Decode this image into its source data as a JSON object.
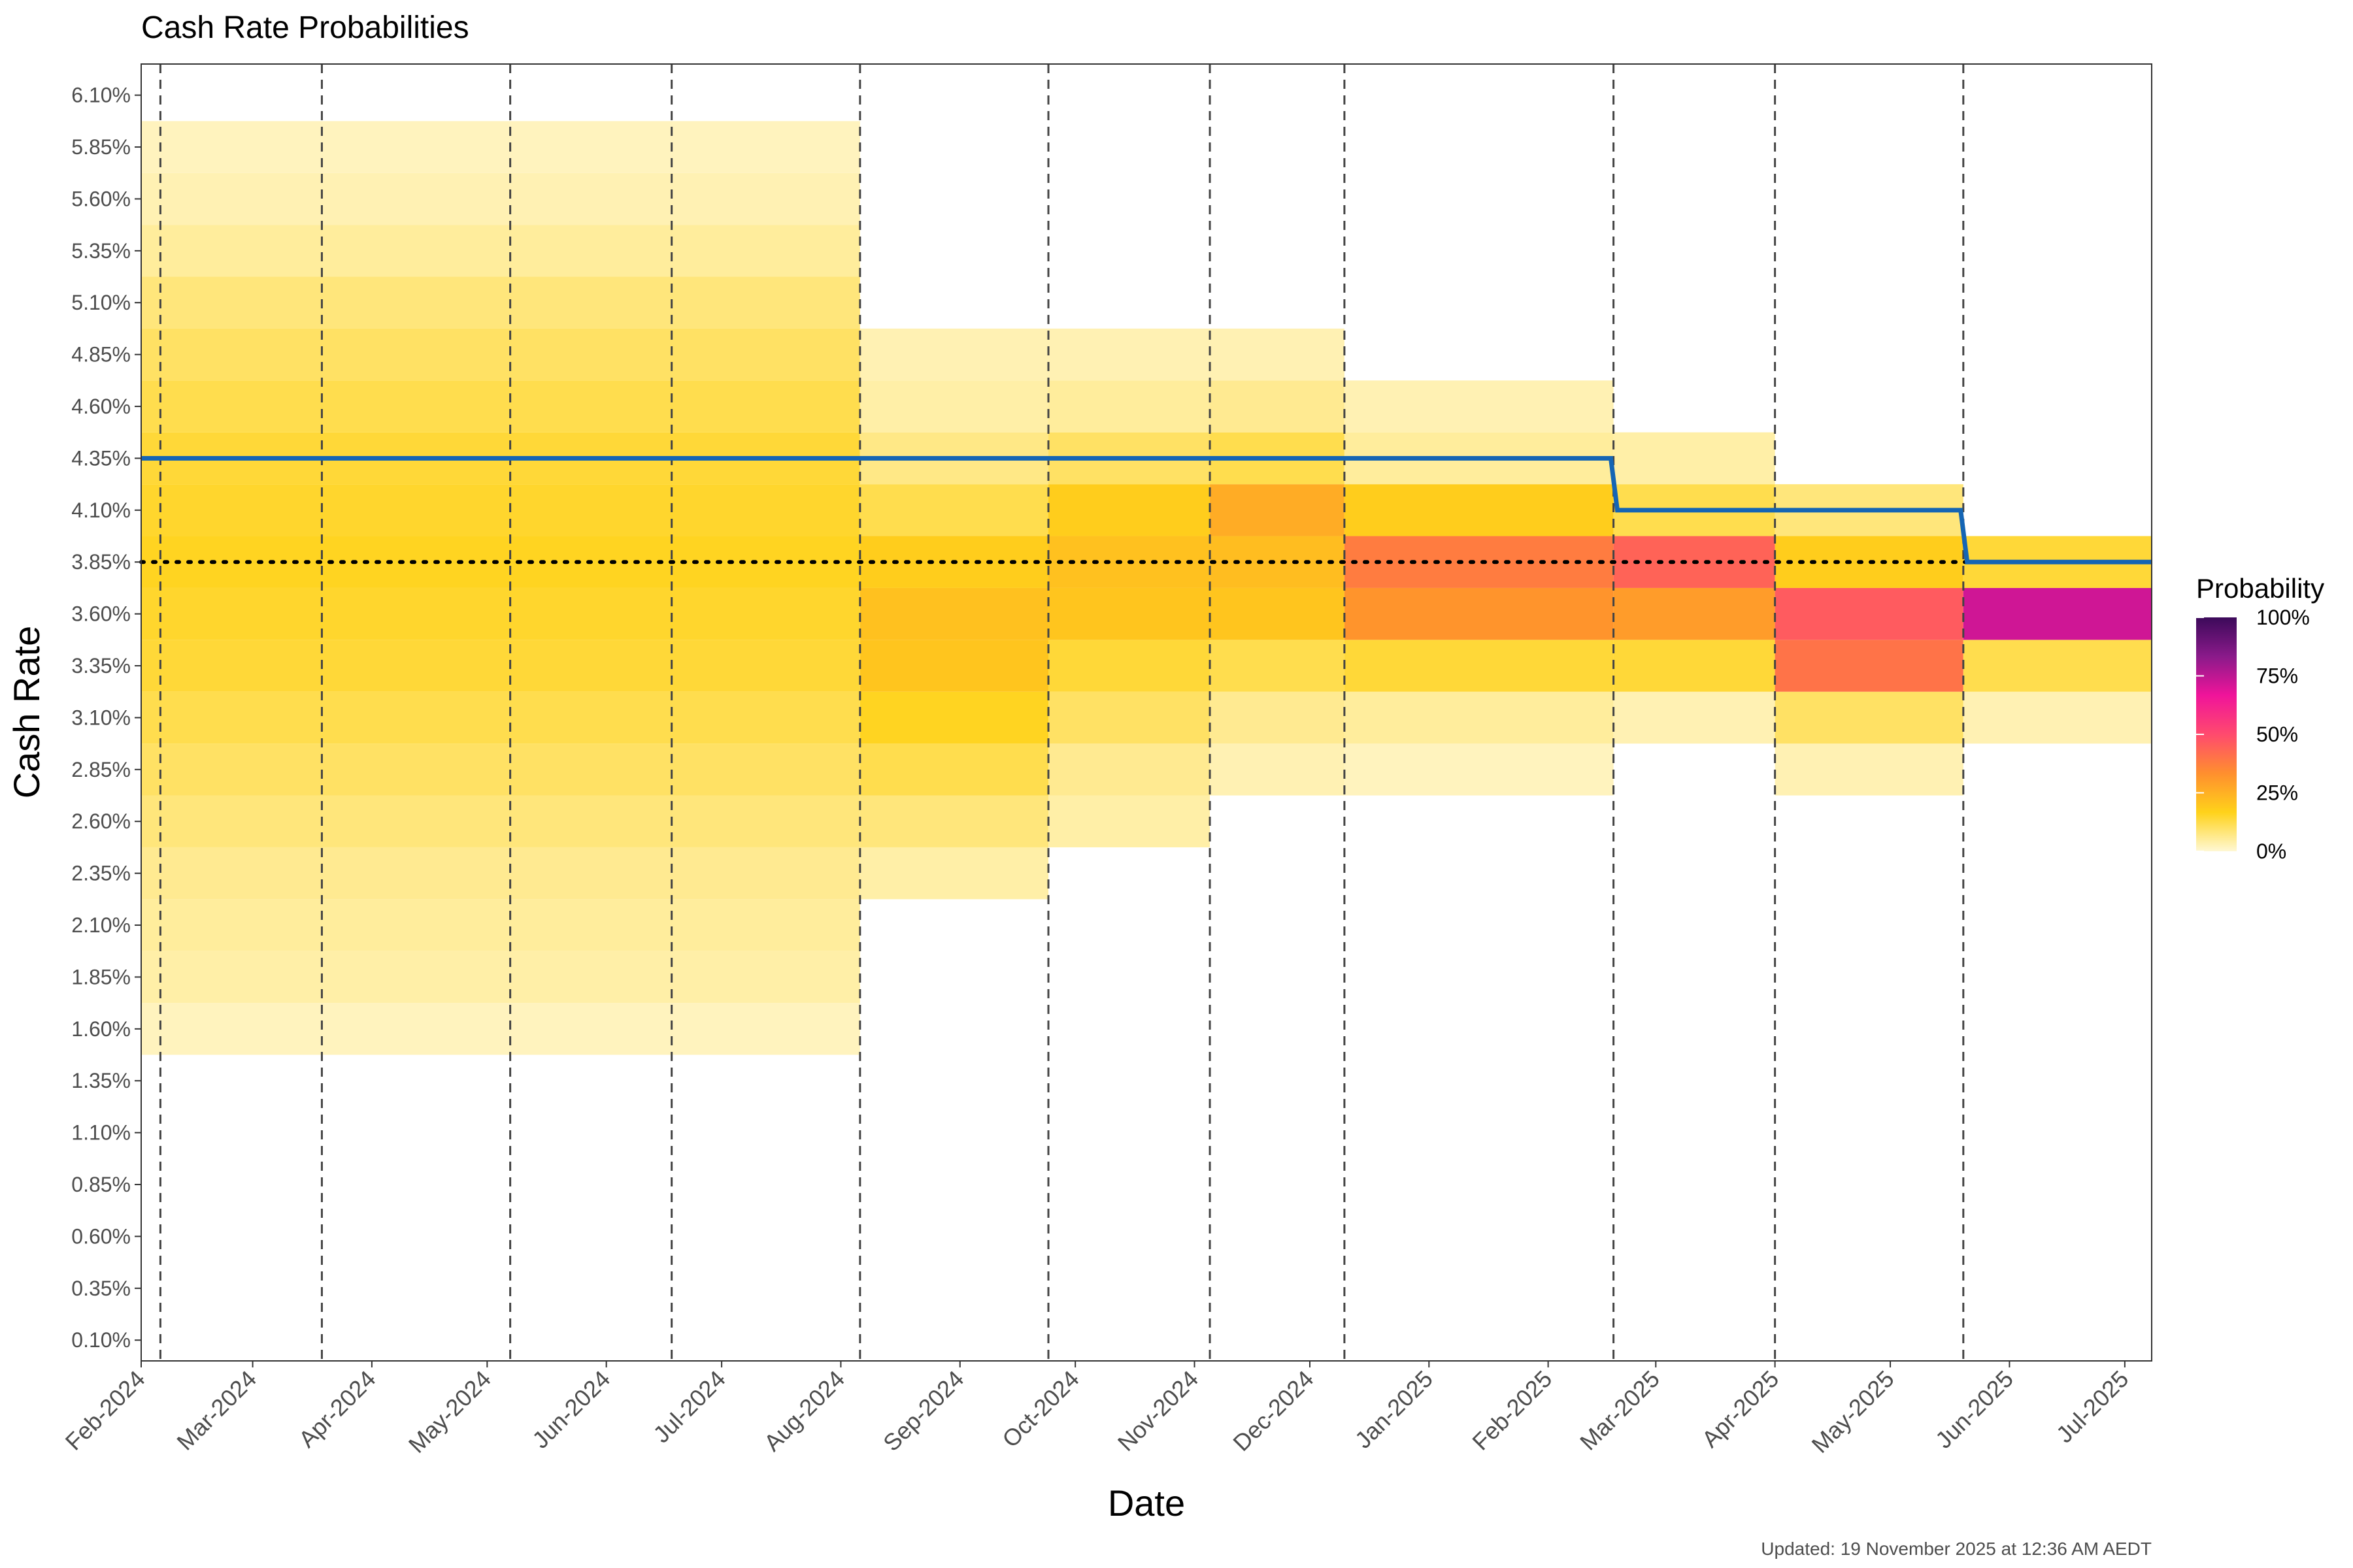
{
  "chart_data": {
    "type": "heatmap",
    "title": "Cash Rate Probabilities",
    "xlabel": "Date",
    "ylabel": "Cash Rate",
    "caption": "Updated: 19 November 2025 at 12:36 AM AEDT",
    "x_range": [
      "2024-02-01",
      "2025-07-08"
    ],
    "x_tick_labels": [
      "Feb-2024",
      "Mar-2024",
      "Apr-2024",
      "May-2024",
      "Jun-2024",
      "Jul-2024",
      "Aug-2024",
      "Sep-2024",
      "Oct-2024",
      "Nov-2024",
      "Dec-2024",
      "Jan-2025",
      "Feb-2025",
      "Mar-2025",
      "Apr-2025",
      "May-2025",
      "Jun-2025",
      "Jul-2025"
    ],
    "x_tick_dates": [
      "2024-02-01",
      "2024-03-01",
      "2024-04-01",
      "2024-05-01",
      "2024-06-01",
      "2024-07-01",
      "2024-08-01",
      "2024-09-01",
      "2024-10-01",
      "2024-11-01",
      "2024-12-01",
      "2025-01-01",
      "2025-02-01",
      "2025-03-01",
      "2025-04-01",
      "2025-05-01",
      "2025-06-01",
      "2025-07-01"
    ],
    "y_range": [
      0.0,
      6.25
    ],
    "y_tick_labels": [
      "0.10%",
      "0.35%",
      "0.60%",
      "0.85%",
      "1.10%",
      "1.35%",
      "1.60%",
      "1.85%",
      "2.10%",
      "2.35%",
      "2.60%",
      "2.85%",
      "3.10%",
      "3.35%",
      "3.60%",
      "3.85%",
      "4.10%",
      "4.35%",
      "4.60%",
      "4.85%",
      "5.10%",
      "5.35%",
      "5.60%",
      "5.85%",
      "6.10%"
    ],
    "y_tick_values": [
      0.1,
      0.35,
      0.6,
      0.85,
      1.1,
      1.35,
      1.6,
      1.85,
      2.1,
      2.35,
      2.6,
      2.85,
      3.1,
      3.35,
      3.6,
      3.85,
      4.1,
      4.35,
      4.6,
      4.85,
      5.1,
      5.35,
      5.6,
      5.85,
      6.1
    ],
    "meeting_dates": [
      "2024-02-06",
      "2024-03-19",
      "2024-05-07",
      "2024-06-18",
      "2024-08-06",
      "2024-09-24",
      "2024-11-05",
      "2024-12-10",
      "2025-02-18",
      "2025-04-01",
      "2025-05-20"
    ],
    "reference_rate": 3.85,
    "cash_rate_steps": [
      {
        "date": "2024-02-01",
        "rate": 4.35
      },
      {
        "date": "2025-02-19",
        "rate": 4.1
      },
      {
        "date": "2025-05-21",
        "rate": 3.85
      },
      {
        "date": "2025-07-08",
        "rate": 3.85
      }
    ],
    "probability_blocks": [
      {
        "from": "2024-02-01",
        "to": "2024-08-06",
        "rates": [
          [
            1.6,
            2
          ],
          [
            1.85,
            4
          ],
          [
            2.1,
            5
          ],
          [
            2.35,
            6
          ],
          [
            2.6,
            8
          ],
          [
            2.85,
            10
          ],
          [
            3.1,
            12
          ],
          [
            3.35,
            14
          ],
          [
            3.6,
            15
          ],
          [
            3.85,
            16
          ],
          [
            4.1,
            15
          ],
          [
            4.35,
            14
          ],
          [
            4.6,
            12
          ],
          [
            4.85,
            10
          ],
          [
            5.1,
            8
          ],
          [
            5.35,
            5
          ],
          [
            5.6,
            3
          ],
          [
            5.85,
            2
          ]
        ]
      },
      {
        "from": "2024-08-06",
        "to": "2024-09-24",
        "rates": [
          [
            2.35,
            4
          ],
          [
            2.6,
            8
          ],
          [
            2.85,
            12
          ],
          [
            3.1,
            16
          ],
          [
            3.35,
            20
          ],
          [
            3.6,
            21
          ],
          [
            3.85,
            18
          ],
          [
            4.1,
            12
          ],
          [
            4.35,
            7
          ],
          [
            4.6,
            4
          ],
          [
            4.85,
            3
          ]
        ]
      },
      {
        "from": "2024-09-24",
        "to": "2024-11-05",
        "rates": [
          [
            2.6,
            4
          ],
          [
            2.85,
            6
          ],
          [
            3.1,
            10
          ],
          [
            3.35,
            14
          ],
          [
            3.6,
            20
          ],
          [
            3.85,
            21
          ],
          [
            4.1,
            18
          ],
          [
            4.35,
            10
          ],
          [
            4.6,
            5
          ],
          [
            4.85,
            3
          ]
        ]
      },
      {
        "from": "2024-11-05",
        "to": "2024-12-10",
        "rates": [
          [
            2.85,
            3
          ],
          [
            3.1,
            6
          ],
          [
            3.35,
            12
          ],
          [
            3.6,
            20
          ],
          [
            3.85,
            22
          ],
          [
            4.1,
            26
          ],
          [
            4.35,
            12
          ],
          [
            4.6,
            6
          ],
          [
            4.85,
            3
          ]
        ]
      },
      {
        "from": "2024-12-10",
        "to": "2025-02-18",
        "rates": [
          [
            2.85,
            2
          ],
          [
            3.1,
            5
          ],
          [
            3.35,
            14
          ],
          [
            3.6,
            32
          ],
          [
            3.85,
            38
          ],
          [
            4.1,
            18
          ],
          [
            4.35,
            5
          ],
          [
            4.6,
            3
          ]
        ]
      },
      {
        "from": "2025-02-18",
        "to": "2025-04-01",
        "rates": [
          [
            3.1,
            3
          ],
          [
            3.35,
            14
          ],
          [
            3.6,
            30
          ],
          [
            3.85,
            44
          ],
          [
            4.1,
            12
          ],
          [
            4.35,
            4
          ]
        ]
      },
      {
        "from": "2025-04-01",
        "to": "2025-05-20",
        "rates": [
          [
            2.85,
            3
          ],
          [
            3.1,
            10
          ],
          [
            3.35,
            40
          ],
          [
            3.6,
            46
          ],
          [
            3.85,
            18
          ],
          [
            4.1,
            8
          ]
        ]
      },
      {
        "from": "2025-05-20",
        "to": "2025-07-08",
        "rates": [
          [
            3.1,
            3
          ],
          [
            3.35,
            12
          ],
          [
            3.6,
            72
          ],
          [
            3.85,
            14
          ]
        ]
      }
    ],
    "legend": {
      "title": "Probability",
      "labels": [
        "100%",
        "75%",
        "50%",
        "25%",
        "0%"
      ],
      "values": [
        100,
        75,
        50,
        25,
        0
      ],
      "colors": [
        "#fff8d4",
        "#ffd21a",
        "#ff8f2e",
        "#ff4a6e",
        "#f0149a",
        "#8a1a8a",
        "#3c0a5a"
      ]
    },
    "line_color": "#1565b4",
    "grid": false
  }
}
